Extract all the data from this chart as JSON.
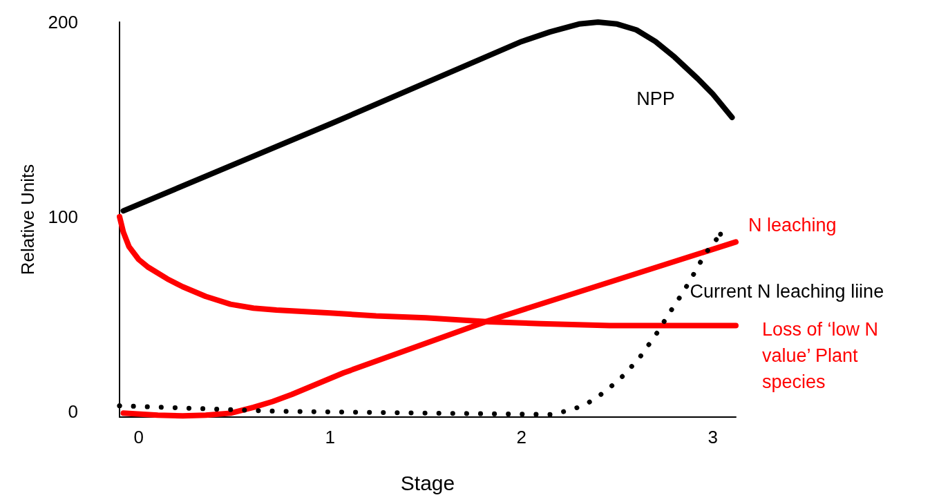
{
  "chart_data": {
    "type": "line",
    "xlabel": "Stage",
    "ylabel": "Relative Units",
    "xlim": [
      -0.1,
      3.12
    ],
    "ylim": [
      -3,
      200
    ],
    "xticks": [
      0,
      1,
      2,
      3
    ],
    "yticks": [
      0,
      100,
      200
    ],
    "grid": false,
    "legend": false,
    "marker": "none",
    "series": [
      {
        "name": "NPP",
        "color": "#000000",
        "line_style": "solid",
        "x": [
          -0.08,
          1.01,
          2.0,
          2.15,
          2.3,
          2.4,
          2.5,
          2.6,
          2.7,
          2.8,
          2.92,
          3.0,
          3.1
        ],
        "values": [
          103,
          148,
          190,
          195,
          199,
          200,
          199,
          196,
          190,
          182,
          171,
          163,
          151
        ]
      },
      {
        "name": "N leaching",
        "color": "#ff0000",
        "line_style": "solid",
        "x": [
          -0.08,
          0.1,
          0.23,
          0.35,
          0.48,
          0.6,
          0.7,
          0.8,
          1.07,
          1.83,
          3.12
        ],
        "values": [
          -1,
          -2,
          -2.4,
          -2,
          -1,
          2,
          5,
          8.6,
          19.7,
          46.6,
          87
        ]
      },
      {
        "name": "Loss of ‘low N value’ Plant species",
        "color": "#ff0000",
        "line_style": "solid",
        "x": [
          -0.1,
          -0.08,
          -0.05,
          0,
          0.05,
          0.15,
          0.23,
          0.35,
          0.48,
          0.6,
          0.72,
          1.0,
          1.24,
          1.5,
          1.83,
          2.1,
          2.46,
          3.12
        ],
        "values": [
          100,
          92,
          84.5,
          78,
          74,
          68,
          64,
          59,
          55,
          53,
          52,
          50.5,
          49,
          48,
          46,
          45,
          44,
          44
        ]
      },
      {
        "name": "Current N leaching liine",
        "color": "#000000",
        "line_style": "dotted",
        "x": [
          -0.1,
          0.72,
          2.15,
          2.23,
          2.31,
          2.38,
          2.46,
          2.54,
          2.62,
          2.7,
          2.77,
          2.83,
          2.88,
          2.96,
          3.04
        ],
        "values": [
          2.8,
          0,
          -1.7,
          0,
          2.4,
          6,
          12,
          19,
          28,
          39,
          50,
          59,
          67,
          81,
          91
        ]
      }
    ]
  }
}
